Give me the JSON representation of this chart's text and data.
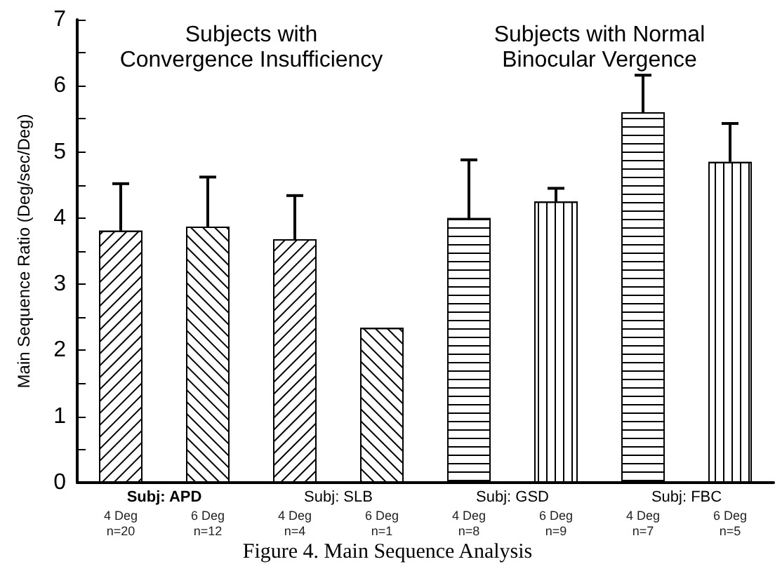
{
  "chart_data": {
    "type": "bar",
    "ylabel": "Main Sequence Ratio (Deg/sec/Deg)",
    "categories": [
      "4 Deg\nn=20",
      "6 Deg\nn=12",
      "4 Deg\nn=4",
      "6 Deg\nn=1",
      "4 Deg\nn=8",
      "6 Deg\nn=9",
      "4 Deg\nn=7",
      "6 Deg\nn=5"
    ],
    "values": [
      3.81,
      3.87,
      3.68,
      2.34,
      4.0,
      4.25,
      5.6,
      4.85
    ],
    "errors": [
      [
        3.81,
        4.52
      ],
      [
        3.87,
        4.62
      ],
      [
        3.68,
        4.34
      ],
      null,
      [
        4.0,
        4.88
      ],
      [
        4.25,
        4.45
      ],
      [
        5.6,
        6.16
      ],
      [
        4.85,
        5.43
      ]
    ],
    "color": "#ffffff",
    "ylim": [
      0,
      7
    ],
    "yticks": [
      0,
      {
        "value": 0.5,
        "label": null
      },
      1,
      {
        "value": 1.5,
        "label": null
      },
      2,
      {
        "value": 2.5,
        "label": null
      },
      3,
      {
        "value": 3.5,
        "label": null
      },
      4,
      {
        "value": 4.5,
        "label": null
      },
      5,
      {
        "value": 5.5,
        "label": null
      },
      6,
      {
        "value": 6.5,
        "label": null
      },
      7
    ],
    "annotations": [
      "Subjects with\nConvergence Insufficiency",
      "Subjects with Normal\nBinocular Vergence",
      "Subj: APD",
      "Subj: SLB",
      "Subj: GSD",
      "Subj: FBC",
      "Figure 4. Main Sequence Analysis"
    ]
  }
}
